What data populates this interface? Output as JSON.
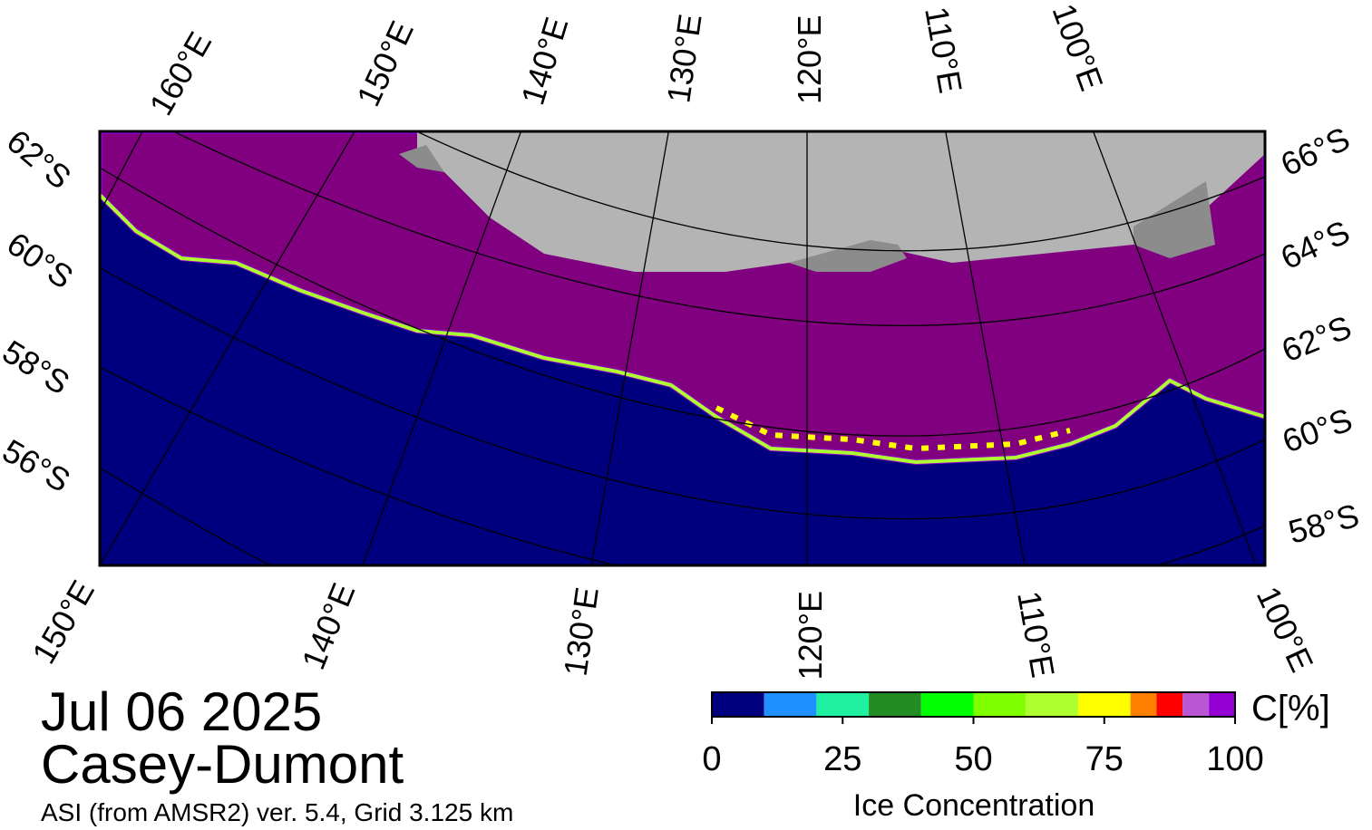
{
  "title": "Jul 06 2025",
  "region": "Casey-Dumont",
  "subtitle": "ASI (from AMSR2) ver. 5.4,  Grid 3.125 km",
  "graticule": {
    "top": [
      "160°E",
      "150°E",
      "140°E",
      "130°E",
      "120°E",
      "110°E",
      "100°E"
    ],
    "left": [
      "62°S",
      "60°S",
      "58°S",
      "56°S"
    ],
    "right": [
      "66°S",
      "64°S",
      "62°S",
      "60°S",
      "58°S"
    ],
    "bottom": [
      "150°E",
      "140°E",
      "130°E",
      "120°E",
      "110°E",
      "100°E"
    ]
  },
  "colorbar": {
    "bins": [
      0,
      10,
      20,
      30,
      40,
      50,
      60,
      70,
      80,
      85,
      90,
      95,
      100
    ],
    "colors": [
      "#00007f",
      "#1e90ff",
      "#20f0a0",
      "#228b22",
      "#00ff00",
      "#7fff00",
      "#adff2f",
      "#ffff00",
      "#ff7f00",
      "#ff0000",
      "#ba55d3",
      "#9400d3"
    ],
    "ticks": [
      0,
      25,
      50,
      75,
      100
    ],
    "unit_label": "C[%]",
    "label": "Ice Concentration"
  }
}
